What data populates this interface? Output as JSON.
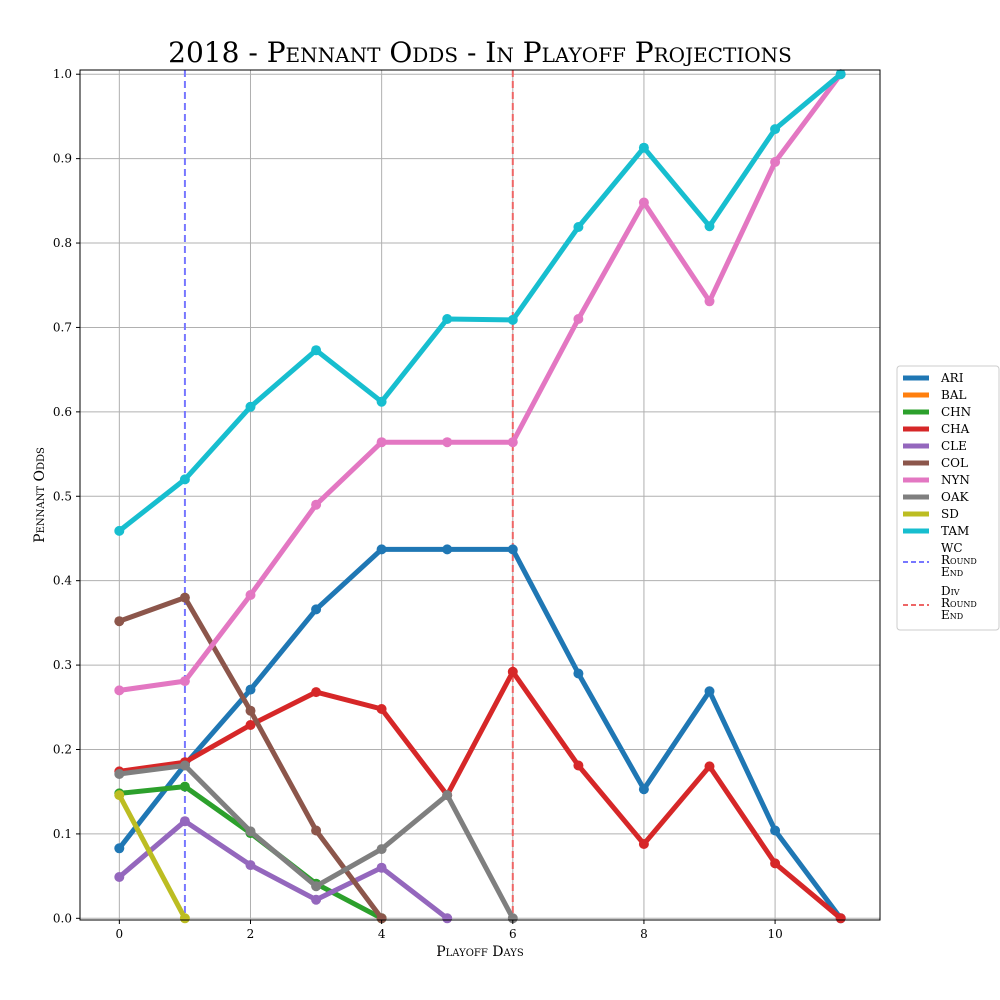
{
  "chart_data": {
    "type": "line",
    "title": "2018 - Pennant Odds - In Playoff Projections",
    "xlabel": "Playoff Days",
    "ylabel": "Pennant Odds",
    "xlim": [
      -0.6,
      11.6
    ],
    "ylim": [
      -0.002,
      1.005
    ],
    "xticks": [
      0,
      2,
      4,
      6,
      8,
      10
    ],
    "yticks": [
      0.0,
      0.1,
      0.2,
      0.3,
      0.4,
      0.5,
      0.6,
      0.7,
      0.8,
      0.9,
      1.0
    ],
    "ytick_labels": [
      "0.0",
      "0.1",
      "0.2",
      "0.3",
      "0.4",
      "0.5",
      "0.6",
      "0.7",
      "0.8",
      "0.9",
      "1.0"
    ],
    "grid": true,
    "legend_position": "right",
    "series": [
      {
        "name": "ARI",
        "color": "#1f77b4",
        "x": [
          0,
          1,
          2,
          3,
          4,
          5,
          6,
          7,
          8,
          9,
          10,
          11
        ],
        "y": [
          0.083,
          0.182,
          0.271,
          0.366,
          0.437,
          0.437,
          0.437,
          0.29,
          0.153,
          0.269,
          0.104,
          0.0
        ]
      },
      {
        "name": "BAL",
        "color": "#ff7f0e",
        "x": [],
        "y": []
      },
      {
        "name": "CHN",
        "color": "#2ca02c",
        "x": [
          0,
          1,
          2,
          3,
          4
        ],
        "y": [
          0.148,
          0.156,
          0.101,
          0.041,
          0.0
        ]
      },
      {
        "name": "CHA",
        "color": "#d62728",
        "x": [
          0,
          1,
          2,
          3,
          4,
          5,
          6,
          7,
          8,
          9,
          10,
          11
        ],
        "y": [
          0.174,
          0.185,
          0.229,
          0.268,
          0.248,
          0.146,
          0.292,
          0.181,
          0.088,
          0.18,
          0.065,
          0.0
        ]
      },
      {
        "name": "CLE",
        "color": "#9467bd",
        "x": [
          0,
          1,
          2,
          3,
          4,
          5
        ],
        "y": [
          0.049,
          0.115,
          0.063,
          0.022,
          0.06,
          0.0
        ]
      },
      {
        "name": "COL",
        "color": "#8c564b",
        "x": [
          0,
          1,
          2,
          3,
          4
        ],
        "y": [
          0.352,
          0.38,
          0.246,
          0.104,
          0.0
        ]
      },
      {
        "name": "NYN",
        "color": "#e377c2",
        "x": [
          0,
          1,
          2,
          3,
          4,
          5,
          6,
          7,
          8,
          9,
          10,
          11
        ],
        "y": [
          0.27,
          0.281,
          0.383,
          0.49,
          0.564,
          0.564,
          0.564,
          0.71,
          0.848,
          0.731,
          0.896,
          1.0
        ]
      },
      {
        "name": "OAK",
        "color": "#7f7f7f",
        "x": [
          0,
          1,
          2,
          3,
          4,
          5,
          6
        ],
        "y": [
          0.171,
          0.181,
          0.103,
          0.038,
          0.082,
          0.146,
          0.0
        ]
      },
      {
        "name": "SD",
        "color": "#bcbd22",
        "x": [
          0,
          1
        ],
        "y": [
          0.146,
          0.0
        ]
      },
      {
        "name": "TAM",
        "color": "#17becf",
        "x": [
          0,
          1,
          2,
          3,
          4,
          5,
          6,
          7,
          8,
          9,
          10,
          11
        ],
        "y": [
          0.459,
          0.52,
          0.606,
          0.673,
          0.612,
          0.71,
          0.709,
          0.819,
          0.913,
          0.82,
          0.935,
          1.0
        ]
      }
    ],
    "vlines": [
      {
        "name": "WC Round End",
        "x": 1,
        "color": "#7777ff"
      },
      {
        "name": "Div Round End",
        "x": 6,
        "color": "#ee6666"
      }
    ]
  }
}
